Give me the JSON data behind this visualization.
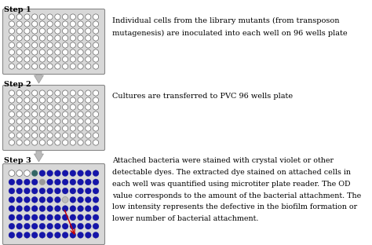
{
  "plate_bg": "#d8d8d8",
  "plate_edge": "#888888",
  "step1_label": "Step 1",
  "step2_label": "Step 2",
  "step3_label": "Step 3",
  "text1_line1": "Individual cells from the library mutants (from transposon",
  "text1_line2": "mutagenesis) are inoculated into each well on 96 wells plate",
  "text2": "Cultures are transferred to PVC 96 wells plate",
  "text3_line1": "Attached bacteria were stained with crystal violet or other",
  "text3_line2": "detectable dyes. The extracted dye stained on attached cells in",
  "text3_line3": "each well was quantified using microtiter plate reader. The OD",
  "text3_line4": "value corresponds to the amount of the bacterial attachment. The",
  "text3_line5": "low intensity represents the defective in the biofilm formation or",
  "text3_line6": "lower number of bacterial attachment.",
  "rows": 8,
  "cols": 12,
  "well_empty_fill": "#ffffff",
  "well_empty_edge": "#666666",
  "well_blue": "#1515aa",
  "well_blue_dark": "#0a0a88",
  "well_gray": "#999999",
  "well_teal": "#336666",
  "well_white": "#ffffff",
  "red_arrow": "#cc0000",
  "arrow_gray_fill": "#bbbbbb",
  "arrow_gray_edge": "#999999"
}
